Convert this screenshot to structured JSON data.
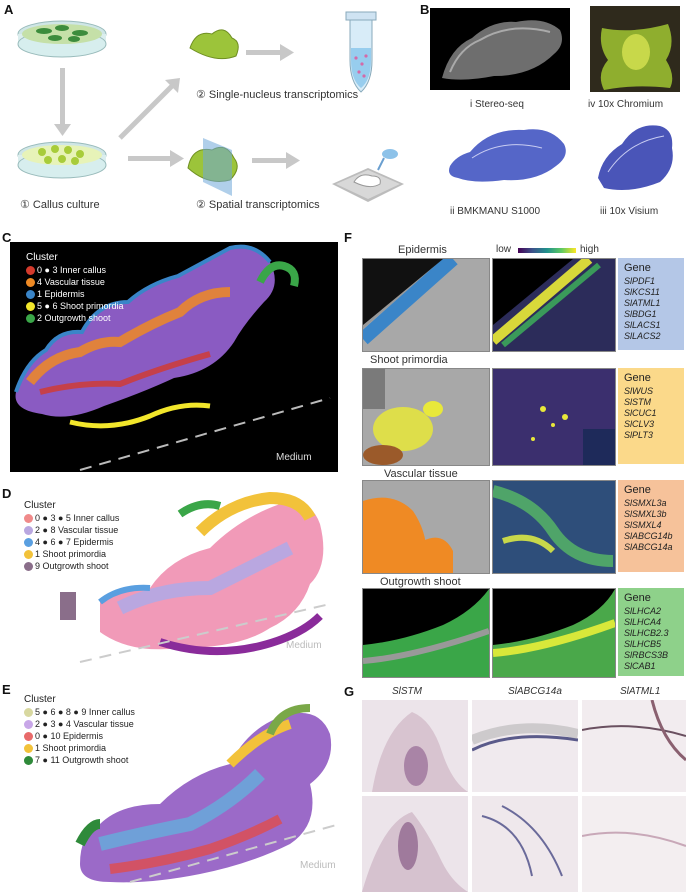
{
  "panels": {
    "a": "A",
    "b": "B",
    "c": "C",
    "d": "D",
    "e": "E",
    "f": "F",
    "g": "G"
  },
  "a": {
    "callus": "① Callus culture",
    "snuc": "② Single-nucleus transcriptomics",
    "spatial": "② Spatial transcriptomics"
  },
  "b": {
    "stereo": "i Stereo-seq",
    "chromium": "iv 10x Chromium",
    "bmk": "ii BMKMANU S1000",
    "visium": "iii 10x Visium"
  },
  "c": {
    "title": "Cluster",
    "rows": [
      {
        "label": "0  ●  3  Inner callus",
        "colors": [
          "#d33a2c",
          "#9b59b6"
        ]
      },
      {
        "label": "4  Vascular tissue",
        "colors": [
          "#ef8a24"
        ]
      },
      {
        "label": "1  Epidermis",
        "colors": [
          "#3a85c8"
        ]
      },
      {
        "label": "5  ●  6  Shoot primordia",
        "colors": [
          "#f2e62b",
          "#9b5a2a"
        ]
      },
      {
        "label": "2  Outgrowth shoot",
        "colors": [
          "#3aa648"
        ]
      }
    ],
    "medium": "Medium"
  },
  "d": {
    "title": "Cluster",
    "rows": [
      {
        "label": "0 ● 3 ● 5  Inner callus"
      },
      {
        "label": "2 ● 8  Vascular tissue"
      },
      {
        "label": "4 ● 6 ● 7  Epidermis"
      },
      {
        "label": "1  Shoot primordia"
      },
      {
        "label": "9  Outgrowth shoot"
      }
    ],
    "medium": "Medium"
  },
  "e": {
    "title": "Cluster",
    "rows": [
      {
        "label": "5 ● 6 ● 8 ● 9  Inner callus"
      },
      {
        "label": "2 ● 3 ● 4  Vascular tissue"
      },
      {
        "label": "0 ● 10  Epidermis"
      },
      {
        "label": "1  Shoot primordia"
      },
      {
        "label": "7 ● 11  Outgrowth shoot"
      }
    ],
    "medium": "Medium"
  },
  "f": {
    "low": "low",
    "high": "high",
    "sections": [
      {
        "title": "Epidermis",
        "gene_label": "Gene",
        "genes": [
          "SlPDF1",
          "SlKCS11",
          "SlATML1",
          "SlBDG1",
          "SlLACS1",
          "SlLACS2"
        ],
        "box_color": "#b4c7e7"
      },
      {
        "title": "Shoot primordia",
        "gene_label": "Gene",
        "genes": [
          "SlWUS",
          "SlSTM",
          "SlCUC1",
          "SlCLV3",
          "SlPLT3"
        ],
        "box_color": "#fbd98a"
      },
      {
        "title": "Vascular tissue",
        "gene_label": "Gene",
        "genes": [
          "SlSMXL3a",
          "SlSMXL3b",
          "SlSMXL4",
          "SlABCG14b",
          "SlABCG14a"
        ],
        "box_color": "#f6c29a"
      },
      {
        "title": "Outgrowth shoot",
        "gene_label": "Gene",
        "genes": [
          "SlLHCA2",
          "SlLHCA4",
          "SlLHCB2.3",
          "SlLHCB5",
          "SlRBCS3B",
          "SlCAB1"
        ],
        "box_color": "#8ed18a"
      }
    ]
  },
  "g": {
    "cols": [
      "SlSTM",
      "SlABCG14a",
      "SlATML1"
    ]
  }
}
